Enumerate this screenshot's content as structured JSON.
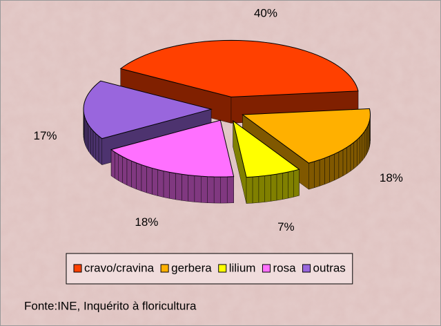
{
  "chart_data": {
    "type": "pie",
    "categories": [
      "cravo/cravina",
      "gerbera",
      "lilium",
      "rosa",
      "outras"
    ],
    "values": [
      40,
      18,
      7,
      18,
      17
    ],
    "value_labels": [
      "40%",
      "18%",
      "7%",
      "18%",
      "17%"
    ],
    "colors": [
      "#ff4000",
      "#ffb000",
      "#ffff00",
      "#ff70ff",
      "#9966dd"
    ],
    "legend": "bottom",
    "note": "Fonte:INE, Inquérito à floricultura"
  }
}
